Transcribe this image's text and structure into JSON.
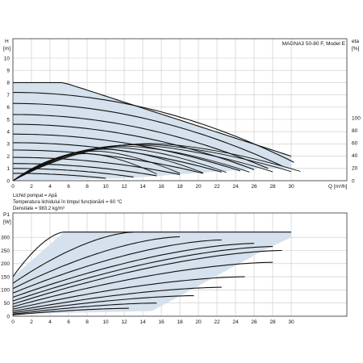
{
  "chart_data": [
    {
      "type": "line",
      "title": "MAGNA3 50-80 F, Model E",
      "ylabel": "H",
      "yunit": "[m]",
      "y2label": "eta",
      "y2unit": "[%]",
      "xlabel": "Q [m³/h]",
      "xlim": [
        0,
        34
      ],
      "ylim": [
        0,
        10
      ],
      "y2lim": [
        0,
        100
      ],
      "x_ticks": [
        "0",
        "2",
        "4",
        "6",
        "8",
        "10",
        "12",
        "14",
        "16",
        "18",
        "20",
        "22",
        "24",
        "26",
        "28",
        "30"
      ],
      "y_ticks": [
        "0",
        "1",
        "2",
        "3",
        "4",
        "5",
        "6",
        "7",
        "8",
        "9",
        "10"
      ],
      "y2_ticks": [
        "0",
        "20",
        "40",
        "60",
        "80",
        "100"
      ],
      "grid": true,
      "operating_region": [
        [
          0,
          8
        ],
        [
          5.5,
          8
        ],
        [
          30,
          2
        ],
        [
          30,
          1
        ],
        [
          27,
          1
        ],
        [
          12,
          0.2
        ],
        [
          0,
          0
        ]
      ],
      "head_curves": [
        {
          "H0": 8.0,
          "Qmax": 30,
          "Hend": 2.0
        },
        {
          "H0": 7.2,
          "Qmax": 30.3,
          "Hend": 1.5
        },
        {
          "H0": 6.3,
          "Qmax": 29,
          "Hend": 1.2
        },
        {
          "H0": 5.4,
          "Qmax": 27.5,
          "Hend": 1.0
        },
        {
          "H0": 4.6,
          "Qmax": 26,
          "Hend": 0.9
        },
        {
          "H0": 3.8,
          "Qmax": 24.5,
          "Hend": 0.8
        },
        {
          "H0": 3.1,
          "Qmax": 22.5,
          "Hend": 0.7
        },
        {
          "H0": 2.5,
          "Qmax": 20.5,
          "Hend": 0.6
        },
        {
          "H0": 1.9,
          "Qmax": 18,
          "Hend": 0.5
        },
        {
          "H0": 1.4,
          "Qmax": 15.5,
          "Hend": 0.4
        },
        {
          "H0": 1.0,
          "Qmax": 13,
          "Hend": 0.3
        },
        {
          "H0": 0.6,
          "Qmax": 10,
          "Hend": 0.2
        }
      ],
      "efficiency_curves": [
        {
          "peak": 59,
          "Qpeak": 15,
          "Qend": 31
        },
        {
          "peak": 58,
          "Qpeak": 14,
          "Qend": 30
        },
        {
          "peak": 57,
          "Qpeak": 13,
          "Qend": 28
        },
        {
          "peak": 55,
          "Qpeak": 12,
          "Qend": 25.5
        },
        {
          "peak": 53,
          "Qpeak": 11,
          "Qend": 23
        },
        {
          "peak": 50,
          "Qpeak": 10,
          "Qend": 20.5
        },
        {
          "peak": 47,
          "Qpeak": 9,
          "Qend": 18
        },
        {
          "peak": 43,
          "Qpeak": 8,
          "Qend": 15.5
        }
      ],
      "annotations": [
        "Lichid pompat = Apă",
        "Temperatura lichidului în timpul funcționării = 60 °C",
        "Densitate = 983.2 kg/m³"
      ]
    },
    {
      "type": "line",
      "ylabel": "P1",
      "yunit": "[W]",
      "xlim": [
        0,
        34
      ],
      "ylim": [
        0,
        325
      ],
      "x_ticks": [
        "0",
        "2",
        "4",
        "6",
        "8",
        "10",
        "12",
        "14",
        "16",
        "18",
        "20",
        "22",
        "24",
        "26",
        "28",
        "30"
      ],
      "y_ticks": [
        "0",
        "50",
        "100",
        "150",
        "200",
        "250",
        "300"
      ],
      "grid": true,
      "operating_region": [
        [
          0,
          150
        ],
        [
          5.5,
          320
        ],
        [
          30,
          320
        ],
        [
          30,
          300
        ],
        [
          27,
          250
        ],
        [
          15,
          20
        ],
        [
          0,
          8
        ]
      ],
      "power_curves": [
        {
          "P0": 150,
          "Qend": 5.5,
          "Pend": 320
        },
        {
          "P0": 125,
          "Qend": 13,
          "Pend": 320
        },
        {
          "P0": 105,
          "Qend": 18,
          "Pend": 302
        },
        {
          "P0": 88,
          "Qend": 22.5,
          "Pend": 290
        },
        {
          "P0": 72,
          "Qend": 26,
          "Pend": 277
        },
        {
          "P0": 58,
          "Qend": 28,
          "Pend": 265
        },
        {
          "P0": 46,
          "Qend": 29,
          "Pend": 250
        },
        {
          "P0": 36,
          "Qend": 28,
          "Pend": 205
        },
        {
          "P0": 27,
          "Qend": 25,
          "Pend": 150
        },
        {
          "P0": 19,
          "Qend": 22.5,
          "Pend": 110
        },
        {
          "P0": 13,
          "Qend": 19.5,
          "Pend": 78
        },
        {
          "P0": 8,
          "Qend": 15.5,
          "Pend": 50
        },
        {
          "P0": 5,
          "Qend": 12.5,
          "Pend": 30
        }
      ]
    }
  ]
}
